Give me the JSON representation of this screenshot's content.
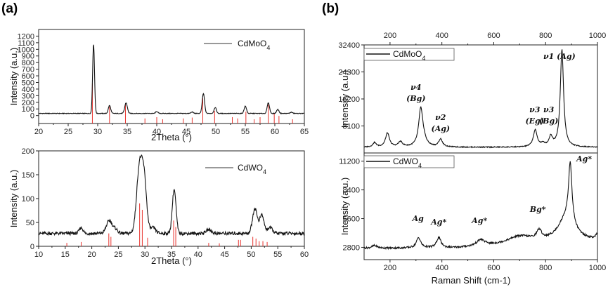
{
  "panel_a_label": "(a)",
  "panel_b_label": "(b)",
  "chart_data": [
    {
      "id": "xrd_cdmoo4",
      "type": "line",
      "legend": "CdMoO4",
      "legend_main": "CdMoO",
      "legend_sub": "4",
      "xlabel": "2Theta (°)",
      "ylabel": "Intensity (a.u.)",
      "xlim": [
        20,
        65
      ],
      "ylim": [
        -120,
        1300
      ],
      "xticks": [
        20,
        25,
        30,
        35,
        40,
        45,
        50,
        55,
        60,
        65
      ],
      "yticks": [
        0,
        100,
        200,
        300,
        400,
        500,
        600,
        700,
        800,
        900,
        1000,
        1100,
        1200
      ],
      "baseline": 32,
      "peaks": [
        [
          29.3,
          1050,
          0.16
        ],
        [
          32.0,
          120,
          0.2
        ],
        [
          34.8,
          160,
          0.22
        ],
        [
          40.0,
          28,
          0.2
        ],
        [
          46.0,
          22,
          0.2
        ],
        [
          47.9,
          300,
          0.2
        ],
        [
          49.9,
          90,
          0.2
        ],
        [
          55.0,
          110,
          0.2
        ],
        [
          58.9,
          160,
          0.2
        ],
        [
          60.5,
          60,
          0.2
        ],
        [
          62.8,
          18,
          0.2
        ]
      ],
      "reference_lines": [
        [
          29.1,
          95
        ],
        [
          32.0,
          40
        ],
        [
          34.7,
          45
        ],
        [
          38.0,
          12
        ],
        [
          40.0,
          15
        ],
        [
          41.0,
          10
        ],
        [
          44.5,
          12
        ],
        [
          46.0,
          14
        ],
        [
          47.8,
          60
        ],
        [
          49.8,
          30
        ],
        [
          52.8,
          15
        ],
        [
          53.7,
          12
        ],
        [
          55.1,
          28
        ],
        [
          56.5,
          10
        ],
        [
          57.5,
          15
        ],
        [
          58.9,
          45
        ],
        [
          59.9,
          25
        ],
        [
          60.7,
          18
        ],
        [
          63.0,
          10
        ]
      ]
    },
    {
      "id": "xrd_cdwo4",
      "type": "line",
      "legend": "CdWO4",
      "legend_main": "CdWO",
      "legend_sub": "4",
      "xlabel": "2Theta (°)",
      "ylabel": "Intensity (a.u.)",
      "xlim": [
        10,
        60
      ],
      "ylim": [
        0,
        200
      ],
      "xticks": [
        10,
        15,
        20,
        25,
        30,
        35,
        40,
        45,
        50,
        55,
        60
      ],
      "yticks": [
        0,
        50,
        100,
        150,
        200
      ],
      "baseline": 27,
      "peaks": [
        [
          18.0,
          12,
          0.35
        ],
        [
          23.3,
          27,
          0.55
        ],
        [
          24.5,
          8,
          0.4
        ],
        [
          29.0,
          142,
          0.55
        ],
        [
          29.9,
          95,
          0.45
        ],
        [
          31.5,
          12,
          0.5
        ],
        [
          35.5,
          92,
          0.35
        ],
        [
          42.0,
          8,
          0.5
        ],
        [
          50.7,
          52,
          0.45
        ],
        [
          52.0,
          38,
          0.4
        ],
        [
          53.5,
          12,
          0.5
        ]
      ],
      "reference_lines": [
        [
          15.3,
          8
        ],
        [
          18.0,
          10
        ],
        [
          23.2,
          30
        ],
        [
          23.6,
          22
        ],
        [
          29.0,
          100
        ],
        [
          29.5,
          85
        ],
        [
          30.5,
          20
        ],
        [
          35.4,
          60
        ],
        [
          35.8,
          45
        ],
        [
          42.0,
          8
        ],
        [
          44.0,
          7
        ],
        [
          47.6,
          15
        ],
        [
          48.0,
          15
        ],
        [
          50.3,
          22
        ],
        [
          50.9,
          18
        ],
        [
          51.5,
          12
        ],
        [
          52.2,
          12
        ],
        [
          53.0,
          10
        ]
      ]
    },
    {
      "id": "raman_cdmoo4",
      "type": "line",
      "legend": "CdMoO4",
      "legend_main": "CdMoO",
      "legend_sub": "4",
      "xlabel": "Raman Shift (cm-1)",
      "ylabel": "Intensity (a.u.)",
      "xlim": [
        100,
        1000
      ],
      "ylim": [
        0,
        32400
      ],
      "xticks": [
        200,
        400,
        600,
        800,
        1000
      ],
      "yticks": [
        8100,
        16200,
        24300,
        32400
      ],
      "baseline": 1700,
      "peaks": [
        [
          140,
          1300,
          8
        ],
        [
          190,
          4200,
          9
        ],
        [
          240,
          1500,
          10
        ],
        [
          318,
          9500,
          9
        ],
        [
          325,
          3000,
          14
        ],
        [
          395,
          2300,
          9
        ],
        [
          760,
          5000,
          9
        ],
        [
          790,
          800,
          10
        ],
        [
          820,
          2900,
          8
        ],
        [
          863,
          29300,
          7.5
        ]
      ],
      "annotations": [
        {
          "text": "ν4",
          "sub": "(Bg)",
          "x": 300
        },
        {
          "text": "ν2",
          "sub": "(Ag)",
          "x": 395
        },
        {
          "text": "ν3",
          "sub": "(Eg)",
          "x": 758
        },
        {
          "text": "ν3",
          "sub": "(Bg)",
          "x": 812
        },
        {
          "text": "ν1",
          "sub": "(Ag)",
          "x": 875
        }
      ]
    },
    {
      "id": "raman_cdwo4",
      "type": "line",
      "legend": "CdWO4",
      "legend_main": "CdWO",
      "legend_sub": "4",
      "xlabel": "Raman Shift (cm-1)",
      "ylabel": "Intensity (a.u.)",
      "xlim": [
        100,
        1000
      ],
      "ylim": [
        1600,
        12000
      ],
      "xticks": [
        200,
        400,
        600,
        800,
        1000
      ],
      "yticks": [
        2800,
        5600,
        8400,
        11200
      ],
      "baseline": 2700,
      "peaks": [
        [
          140,
          250,
          12
        ],
        [
          310,
          1000,
          10
        ],
        [
          388,
          1000,
          10
        ],
        [
          550,
          600,
          20
        ],
        [
          700,
          800,
          60
        ],
        [
          775,
          900,
          12
        ],
        [
          880,
          2300,
          40
        ],
        [
          895,
          5800,
          8
        ],
        [
          1000,
          500,
          8
        ]
      ],
      "annotations": [
        {
          "text": "Ag",
          "x": 308
        },
        {
          "text": "Ag*",
          "x": 388
        },
        {
          "text": "Ag*",
          "x": 545
        },
        {
          "text": "Bg*",
          "x": 770
        },
        {
          "text": "Ag*",
          "x": 900
        }
      ]
    }
  ]
}
